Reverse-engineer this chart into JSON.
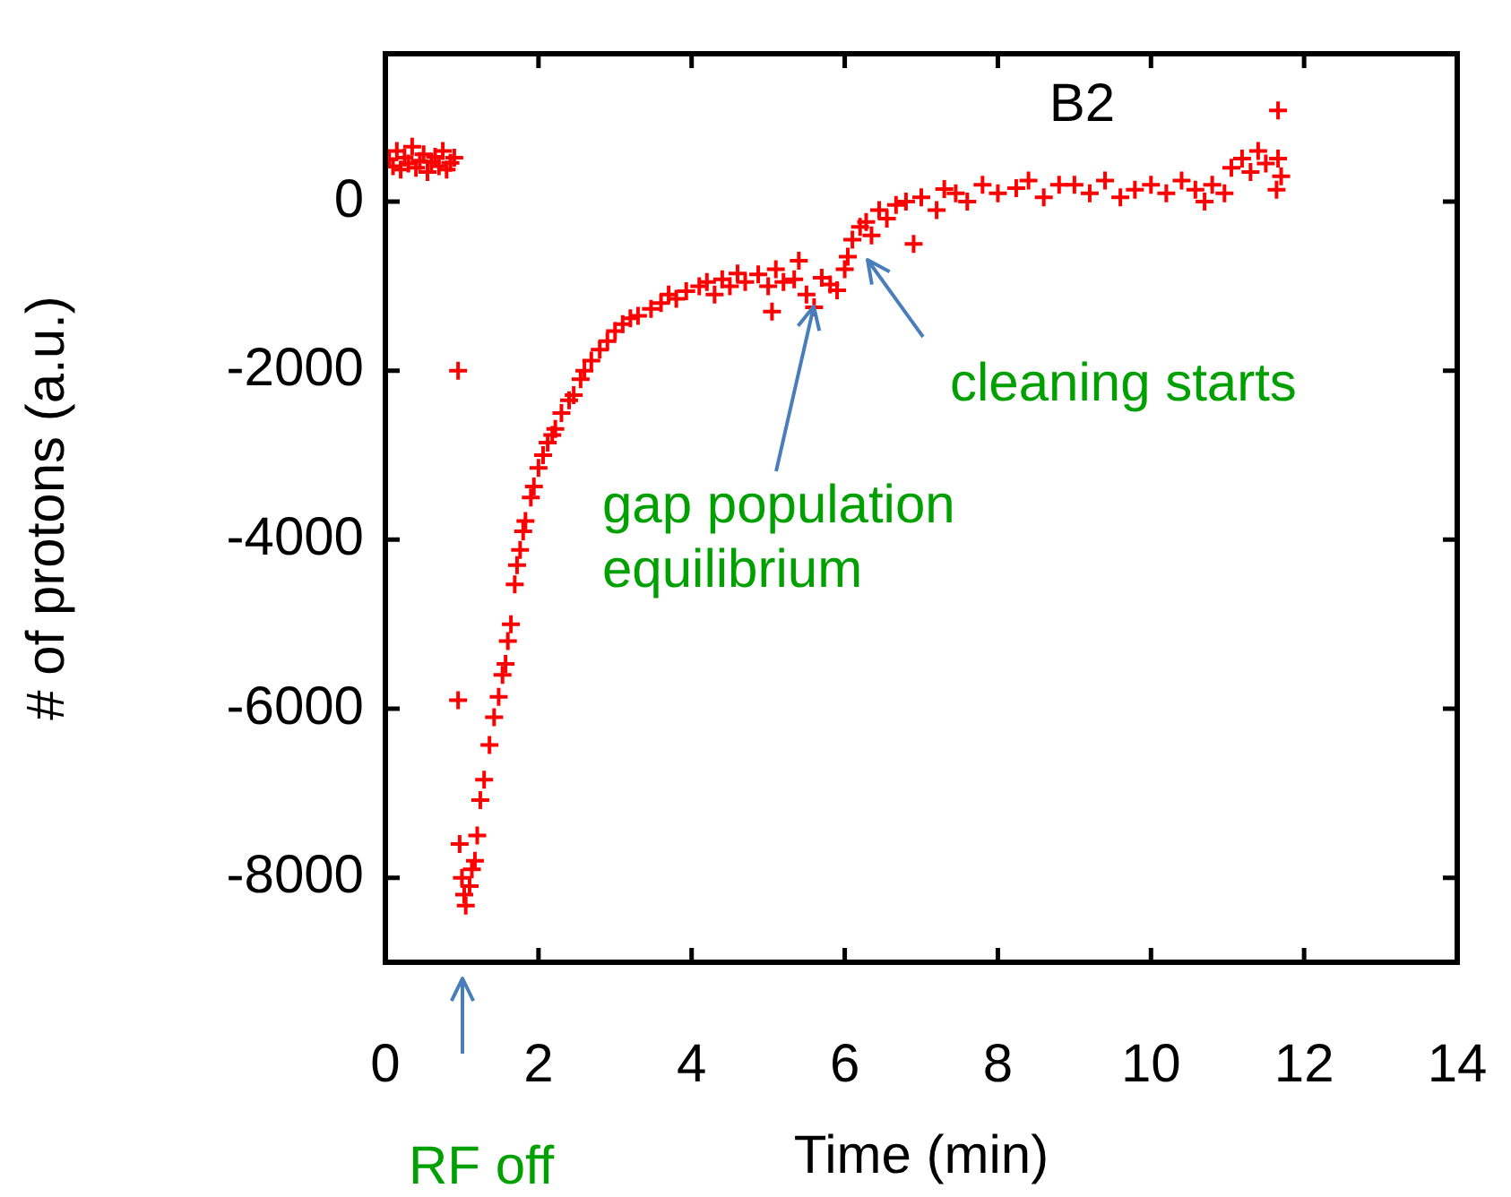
{
  "chart_data": {
    "type": "scatter",
    "title": "B2",
    "xlabel": "Time (min)",
    "ylabel": "# of protons (a.u.)",
    "xlim": [
      0,
      14
    ],
    "xticks": [
      0,
      2,
      4,
      6,
      8,
      10,
      12,
      14
    ],
    "ylim": [
      -9000,
      1750
    ],
    "yticks": [
      -8000,
      -6000,
      -4000,
      -2000,
      0
    ],
    "grid": false,
    "legend": false,
    "marker": "cross",
    "series": [
      {
        "color": "#ff0000",
        "x": [
          0.05,
          0.1,
          0.15,
          0.2,
          0.25,
          0.3,
          0.35,
          0.4,
          0.45,
          0.5,
          0.55,
          0.6,
          0.65,
          0.7,
          0.75,
          0.8,
          0.85,
          0.9,
          0.95,
          0.95,
          0.97,
          1.0,
          1.03,
          1.05,
          1.1,
          1.13,
          1.17,
          1.2,
          1.24,
          1.29,
          1.36,
          1.42,
          1.48,
          1.53,
          1.57,
          1.6,
          1.64,
          1.69,
          1.72,
          1.76,
          1.8,
          1.83,
          1.9,
          1.94,
          2.0,
          2.06,
          2.12,
          2.18,
          2.22,
          2.3,
          2.4,
          2.46,
          2.55,
          2.6,
          2.69,
          2.8,
          2.9,
          3.0,
          3.1,
          3.2,
          3.3,
          3.47,
          3.6,
          3.7,
          3.8,
          3.93,
          4.1,
          4.2,
          4.3,
          4.4,
          4.5,
          4.6,
          4.7,
          4.87,
          5.0,
          5.05,
          5.1,
          5.2,
          5.34,
          5.4,
          5.5,
          5.6,
          5.7,
          5.81,
          5.9,
          6.0,
          6.04,
          6.1,
          6.2,
          6.28,
          6.35,
          6.45,
          6.55,
          6.67,
          6.8,
          6.9,
          7.0,
          7.2,
          7.3,
          7.45,
          7.6,
          7.8,
          8.0,
          8.24,
          8.4,
          8.6,
          8.8,
          9.0,
          9.2,
          9.4,
          9.6,
          9.79,
          10.0,
          10.2,
          10.4,
          10.58,
          10.7,
          10.8,
          10.96,
          11.05,
          11.19,
          11.3,
          11.4,
          11.5,
          11.66,
          11.66,
          11.64,
          11.7
        ],
        "values": [
          500,
          420,
          600,
          380,
          520,
          450,
          650,
          400,
          480,
          560,
          350,
          470,
          530,
          420,
          600,
          380,
          460,
          520,
          -2000,
          -5900,
          -7600,
          -8000,
          -8200,
          -8330,
          -8100,
          -7900,
          -7800,
          -7500,
          -7080,
          -6840,
          -6430,
          -6100,
          -5860,
          -5600,
          -5470,
          -5200,
          -5000,
          -4530,
          -4300,
          -4120,
          -3900,
          -3780,
          -3500,
          -3370,
          -3150,
          -3000,
          -2850,
          -2760,
          -2690,
          -2500,
          -2350,
          -2290,
          -2100,
          -2000,
          -1880,
          -1750,
          -1650,
          -1530,
          -1450,
          -1380,
          -1350,
          -1270,
          -1200,
          -1100,
          -1150,
          -1060,
          -1000,
          -950,
          -1100,
          -920,
          -1000,
          -850,
          -950,
          -860,
          -1000,
          -1300,
          -800,
          -950,
          -920,
          -700,
          -1100,
          -1250,
          -900,
          -980,
          -1050,
          -800,
          -650,
          -450,
          -300,
          -240,
          -400,
          -100,
          -200,
          -40,
          0,
          -500,
          50,
          -100,
          150,
          100,
          0,
          200,
          100,
          160,
          250,
          50,
          200,
          200,
          100,
          250,
          50,
          140,
          200,
          100,
          250,
          140,
          0,
          200,
          100,
          400,
          510,
          350,
          600,
          450,
          510,
          1080,
          140,
          300
        ]
      }
    ],
    "annotations": [
      {
        "text": "gap population equilibrium",
        "x": 5.6,
        "y": -1250
      },
      "cleaning starts",
      "RF off"
    ]
  }
}
